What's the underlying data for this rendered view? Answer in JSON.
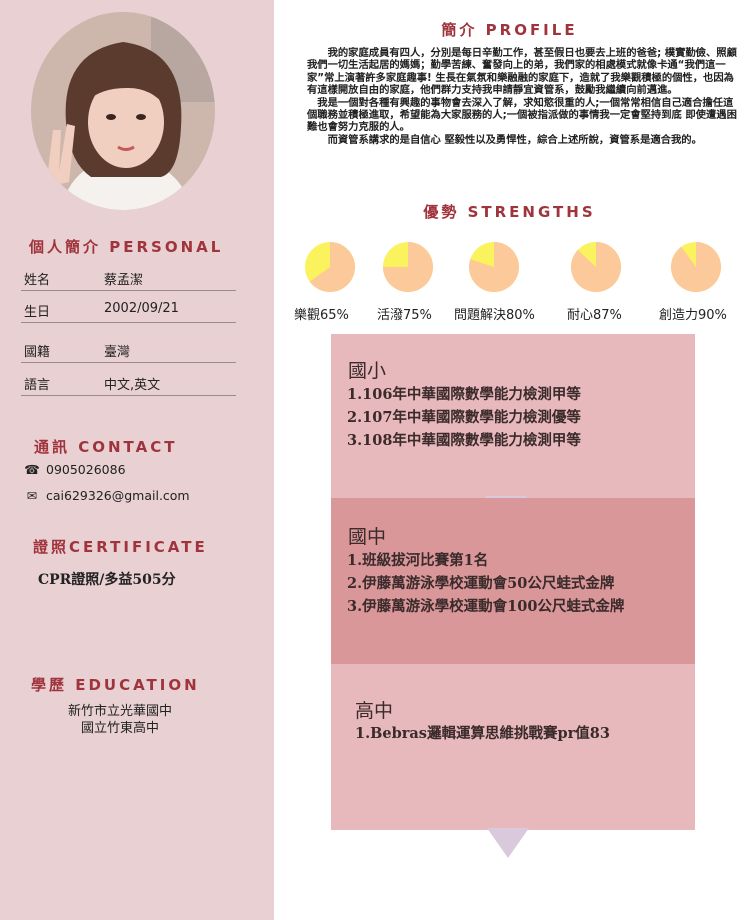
{
  "personal": {
    "title": "個人簡介 PERSONAL",
    "rows": [
      {
        "label": "姓名",
        "value": "蔡孟潔"
      },
      {
        "label": "生日",
        "value": "2002/09/21"
      },
      {
        "label": "國籍",
        "value": "臺灣"
      },
      {
        "label": "語言",
        "value": "中文,英文"
      }
    ]
  },
  "contact": {
    "title": "通訊 CONTACT",
    "phone": "0905026086",
    "email": "cai629326@gmail.com"
  },
  "certificate": {
    "title": "證照CERTIFICATE",
    "text": "CPR證照/多益505分"
  },
  "education": {
    "title": "學歷 EDUCATION",
    "schools": [
      "新竹市立光華國中",
      "國立竹東高中"
    ]
  },
  "profile": {
    "title": "簡介 PROFILE",
    "paragraphs": [
      "我的家庭成員有四人，分別是每日辛勤工作，甚至假日也要去上班的爸爸; 樸實勤儉、照顧我們一切生活起居的媽媽；勤學苦練、奮發向上的弟，我們家的相處模式就像卡通“我們這一家”常上演著許多家庭趣事! 生長在氣氛和樂融融的家庭下，造就了我樂觀積極的個性，也因為有這樣開放自由的家庭，他們群力支持我申請靜宜資管系，鼓勵我繼續向前邁進。",
      "我是一個對各種有興趣的事物會去深入了解，求知慾很重的人;一個常常相信自己適合擔任這個職務並積極進取，希望能為大家服務的人;一個被指派做的事情我一定會堅持到底 即使遭遇困難也會努力克服的人。",
      "而資管系講求的是自信心 堅毅性以及勇悍性，綜合上述所說，資管系是適合我的。"
    ]
  },
  "strengths": {
    "title": "優勢 STRENGTHS",
    "items": [
      {
        "label": "樂觀65%",
        "value": 65
      },
      {
        "label": "活潑75%",
        "value": 75
      },
      {
        "label": "問題解決80%",
        "value": 80
      },
      {
        "label": "耐心87%",
        "value": 87
      },
      {
        "label": "創造力90%",
        "value": 90
      }
    ],
    "fill_color": "#fbc99a",
    "rest_color": "#fbf35e"
  },
  "timeline": [
    {
      "title": "國小",
      "lines": [
        "1.106年中華國際數學能力檢測甲等",
        "2.107年中華國際數學能力檢測優等",
        "3.108年中華國際數學能力檢測甲等"
      ]
    },
    {
      "title": "國中",
      "lines": [
        "1.班級拔河比賽第1名",
        "2.伊藤萬游泳學校運動會50公尺蛙式金牌",
        "3.伊藤萬游泳學校運動會100公尺蛙式金牌"
      ]
    },
    {
      "title": "高中",
      "lines": [
        "1.Bebras邏輯運算思維挑戰賽pr值83"
      ]
    }
  ]
}
